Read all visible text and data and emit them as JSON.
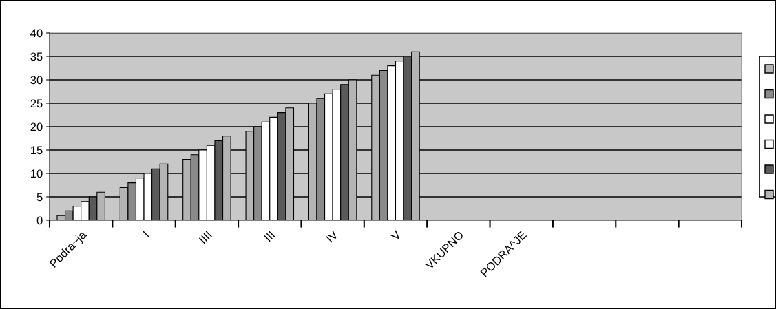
{
  "chart_data": {
    "type": "bar",
    "categories": [
      "Podra~ja",
      "I",
      "IIII",
      "III",
      "IV",
      "V",
      "VKUPNO",
      "PODRA^JE",
      null,
      null,
      null
    ],
    "series": [
      {
        "color": "#b4b4b4",
        "values": [
          1,
          7,
          13,
          19,
          25,
          31,
          null,
          null,
          null,
          null,
          null
        ]
      },
      {
        "color": "#8a8a8a",
        "values": [
          2,
          8,
          14,
          20,
          26,
          32,
          null,
          null,
          null,
          null,
          null
        ]
      },
      {
        "color": "#ffffff",
        "values": [
          3,
          9,
          15,
          21,
          27,
          33,
          null,
          null,
          null,
          null,
          null
        ]
      },
      {
        "color": "#ffffff",
        "values": [
          4,
          10,
          16,
          22,
          28,
          34,
          null,
          null,
          null,
          null,
          null
        ]
      },
      {
        "color": "#5a5a5a",
        "values": [
          5,
          11,
          17,
          23,
          29,
          35,
          null,
          null,
          null,
          null,
          null
        ]
      },
      {
        "color": "#b4b4b4",
        "values": [
          6,
          12,
          18,
          24,
          30,
          36,
          null,
          null,
          null,
          null,
          null
        ]
      }
    ],
    "ylim": [
      0,
      40
    ],
    "yticks": [
      0,
      5,
      10,
      15,
      20,
      25,
      30,
      35,
      40
    ],
    "grid": "y"
  }
}
